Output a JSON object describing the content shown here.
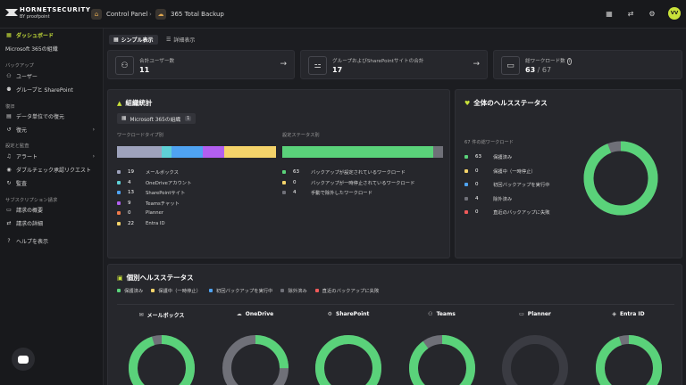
{
  "header": {
    "logo_text": "HORNETSECURITY",
    "logo_sub": "BY proofpoint",
    "breadcrumb_1": "Control Panel",
    "breadcrumb_sep": "›",
    "breadcrumb_2": "365 Total Backup",
    "avatar_initials": "VV"
  },
  "sidebar": {
    "dashboard": "ダッシュボード",
    "m365_org": "Microsoft 365の組織",
    "group_backup": "バックアップ",
    "users": "ユーザー",
    "groups_sp": "グループと SharePoint",
    "group_restore": "復旧",
    "restore_data_unit": "データ単位での復元",
    "restore": "復元",
    "group_settings": "設定と監査",
    "alerts": "アラート",
    "double_check": "ダブルチェック承認リクエスト",
    "audit": "監査",
    "group_subscription": "サブスクリプション請求",
    "billing_overview": "請求の概要",
    "billing_details": "請求の詳細",
    "help": "ヘルプを表示"
  },
  "view_tabs": {
    "simple": "シンプル表示",
    "detail": "詳細表示"
  },
  "stats": {
    "users_label": "合計ユーザー数",
    "users_value": "11",
    "groups_label": "グループおよびSharePointサイトの合計",
    "groups_value": "17",
    "workloads_label": "総ワークロード数",
    "workloads_value": "63",
    "workloads_total": " / 67"
  },
  "org_stats": {
    "title": "組織統計",
    "org_button": "Microsoft 365の組織",
    "org_count": "1",
    "workload_type_label": "ワークロードタイプ別",
    "config_status_label": "設定ステータス別",
    "workload_types": [
      {
        "count": "19",
        "name": "メールボックス",
        "color": "#9ea2bc"
      },
      {
        "count": "4",
        "name": "OneDriveアカウント",
        "color": "#5fd0d6"
      },
      {
        "count": "13",
        "name": "SharePointサイト",
        "color": "#4fa3f2"
      },
      {
        "count": "9",
        "name": "Teamsチャット",
        "color": "#b25ff0"
      },
      {
        "count": "0",
        "name": "Planner",
        "color": "#f07a4a"
      },
      {
        "count": "22",
        "name": "Entra ID",
        "color": "#f4d36a"
      }
    ],
    "config_status": [
      {
        "count": "63",
        "name": "バックアップが設定されているワークロード",
        "color": "#5ad27a"
      },
      {
        "count": "0",
        "name": "バックアップが一時停止されているワークロード",
        "color": "#f4d36a"
      },
      {
        "count": "4",
        "name": "手動で除外したワークロード",
        "color": "#6f7078"
      }
    ]
  },
  "overall_health": {
    "title": "全体のヘルスステータス",
    "subtitle": "67 件の総ワークロード",
    "items": [
      {
        "count": "63",
        "name": "保護済み",
        "color": "#5ad27a"
      },
      {
        "count": "0",
        "name": "保護中（一時停止）",
        "color": "#f4d36a"
      },
      {
        "count": "0",
        "name": "初回バックアップを実行中",
        "color": "#4fa3f2"
      },
      {
        "count": "4",
        "name": "除外済み",
        "color": "#6f7078"
      },
      {
        "count": "0",
        "name": "直近のバックアップに失敗",
        "color": "#f05a5a"
      }
    ]
  },
  "individual_health": {
    "title": "個別ヘルスステータス",
    "legend": [
      {
        "name": "保護済み",
        "color": "#5ad27a"
      },
      {
        "name": "保護中（一時停止）",
        "color": "#f4d36a"
      },
      {
        "name": "初回バックアップを実行中",
        "color": "#4fa3f2"
      },
      {
        "name": "除外済み",
        "color": "#6f7078"
      },
      {
        "name": "直近のバックアップに失敗",
        "color": "#f05a5a"
      }
    ],
    "columns": [
      {
        "name": "メールボックス",
        "protected_pct": 0.95
      },
      {
        "name": "OneDrive",
        "protected_pct": 0.25
      },
      {
        "name": "SharePoint",
        "protected_pct": 1.0
      },
      {
        "name": "Teams",
        "protected_pct": 0.9
      },
      {
        "name": "Planner",
        "protected_pct": 0.0
      },
      {
        "name": "Entra ID",
        "protected_pct": 0.95
      }
    ]
  }
}
